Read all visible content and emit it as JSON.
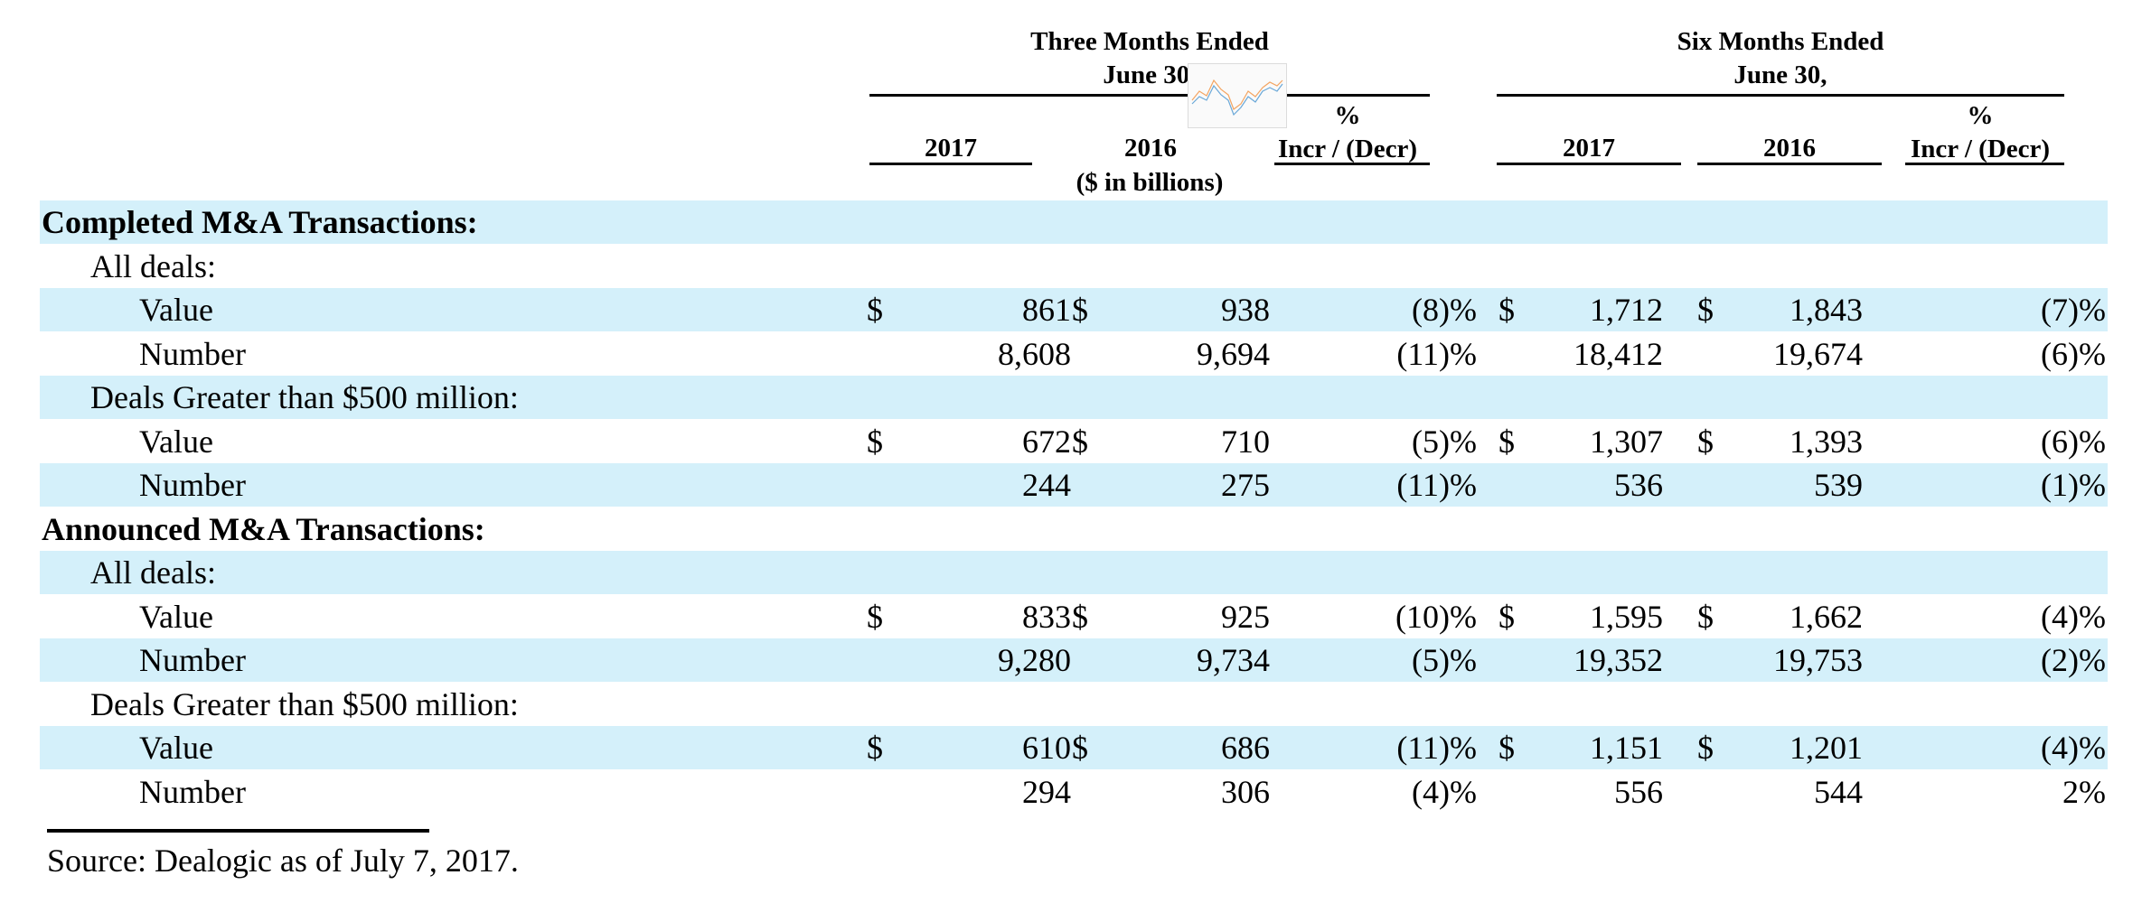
{
  "header": {
    "three_months_line1": "Three Months Ended",
    "three_months_line2": "June 30,",
    "six_months_line1": "Six Months Ended",
    "six_months_line2": "June 30,",
    "col_2017": "2017",
    "col_2016": "2016",
    "pct_line1": "%",
    "pct_line2": "Incr / (Decr)",
    "units": "($ in billions)"
  },
  "rows": [
    {
      "label": "Completed M&A Transactions:",
      "level": 0
    },
    {
      "label": "All deals:",
      "level": 1
    },
    {
      "label": "Value",
      "level": 2,
      "q_2017": "861",
      "q_2016": "938",
      "q_pct": "(8)%",
      "h_2017": "1,712",
      "h_2016": "1,843",
      "h_pct": "(7)%",
      "dollar": "$"
    },
    {
      "label": "Number",
      "level": 2,
      "q_2017": "8,608",
      "q_2016": "9,694",
      "q_pct": "(11)%",
      "h_2017": "18,412",
      "h_2016": "19,674",
      "h_pct": "(6)%"
    },
    {
      "label": "Deals Greater than $500 million:",
      "level": 1
    },
    {
      "label": "Value",
      "level": 2,
      "q_2017": "672",
      "q_2016": "710",
      "q_pct": "(5)%",
      "h_2017": "1,307",
      "h_2016": "1,393",
      "h_pct": "(6)%",
      "dollar": "$"
    },
    {
      "label": "Number",
      "level": 2,
      "q_2017": "244",
      "q_2016": "275",
      "q_pct": "(11)%",
      "h_2017": "536",
      "h_2016": "539",
      "h_pct": "(1)%"
    },
    {
      "label": "Announced M&A Transactions:",
      "level": 0
    },
    {
      "label": "All deals:",
      "level": 1
    },
    {
      "label": "Value",
      "level": 2,
      "q_2017": "833",
      "q_2016": "925",
      "q_pct": "(10)%",
      "h_2017": "1,595",
      "h_2016": "1,662",
      "h_pct": "(4)%",
      "dollar": "$"
    },
    {
      "label": "Number",
      "level": 2,
      "q_2017": "9,280",
      "q_2016": "9,734",
      "q_pct": "(5)%",
      "h_2017": "19,352",
      "h_2016": "19,753",
      "h_pct": "(2)%"
    },
    {
      "label": "Deals Greater than $500 million:",
      "level": 1
    },
    {
      "label": "Value",
      "level": 2,
      "q_2017": "610",
      "q_2016": "686",
      "q_pct": "(11)%",
      "h_2017": "1,151",
      "h_2016": "1,201",
      "h_pct": "(4)%",
      "dollar": "$"
    },
    {
      "label": "Number",
      "level": 2,
      "q_2017": "294",
      "q_2016": "306",
      "q_pct": "(4)%",
      "h_2017": "556",
      "h_2016": "544",
      "h_pct": "2%"
    }
  ],
  "footnote": "Source: Dealogic as of July 7, 2017.",
  "colors": {
    "row_shade": "#d4f0fa"
  }
}
